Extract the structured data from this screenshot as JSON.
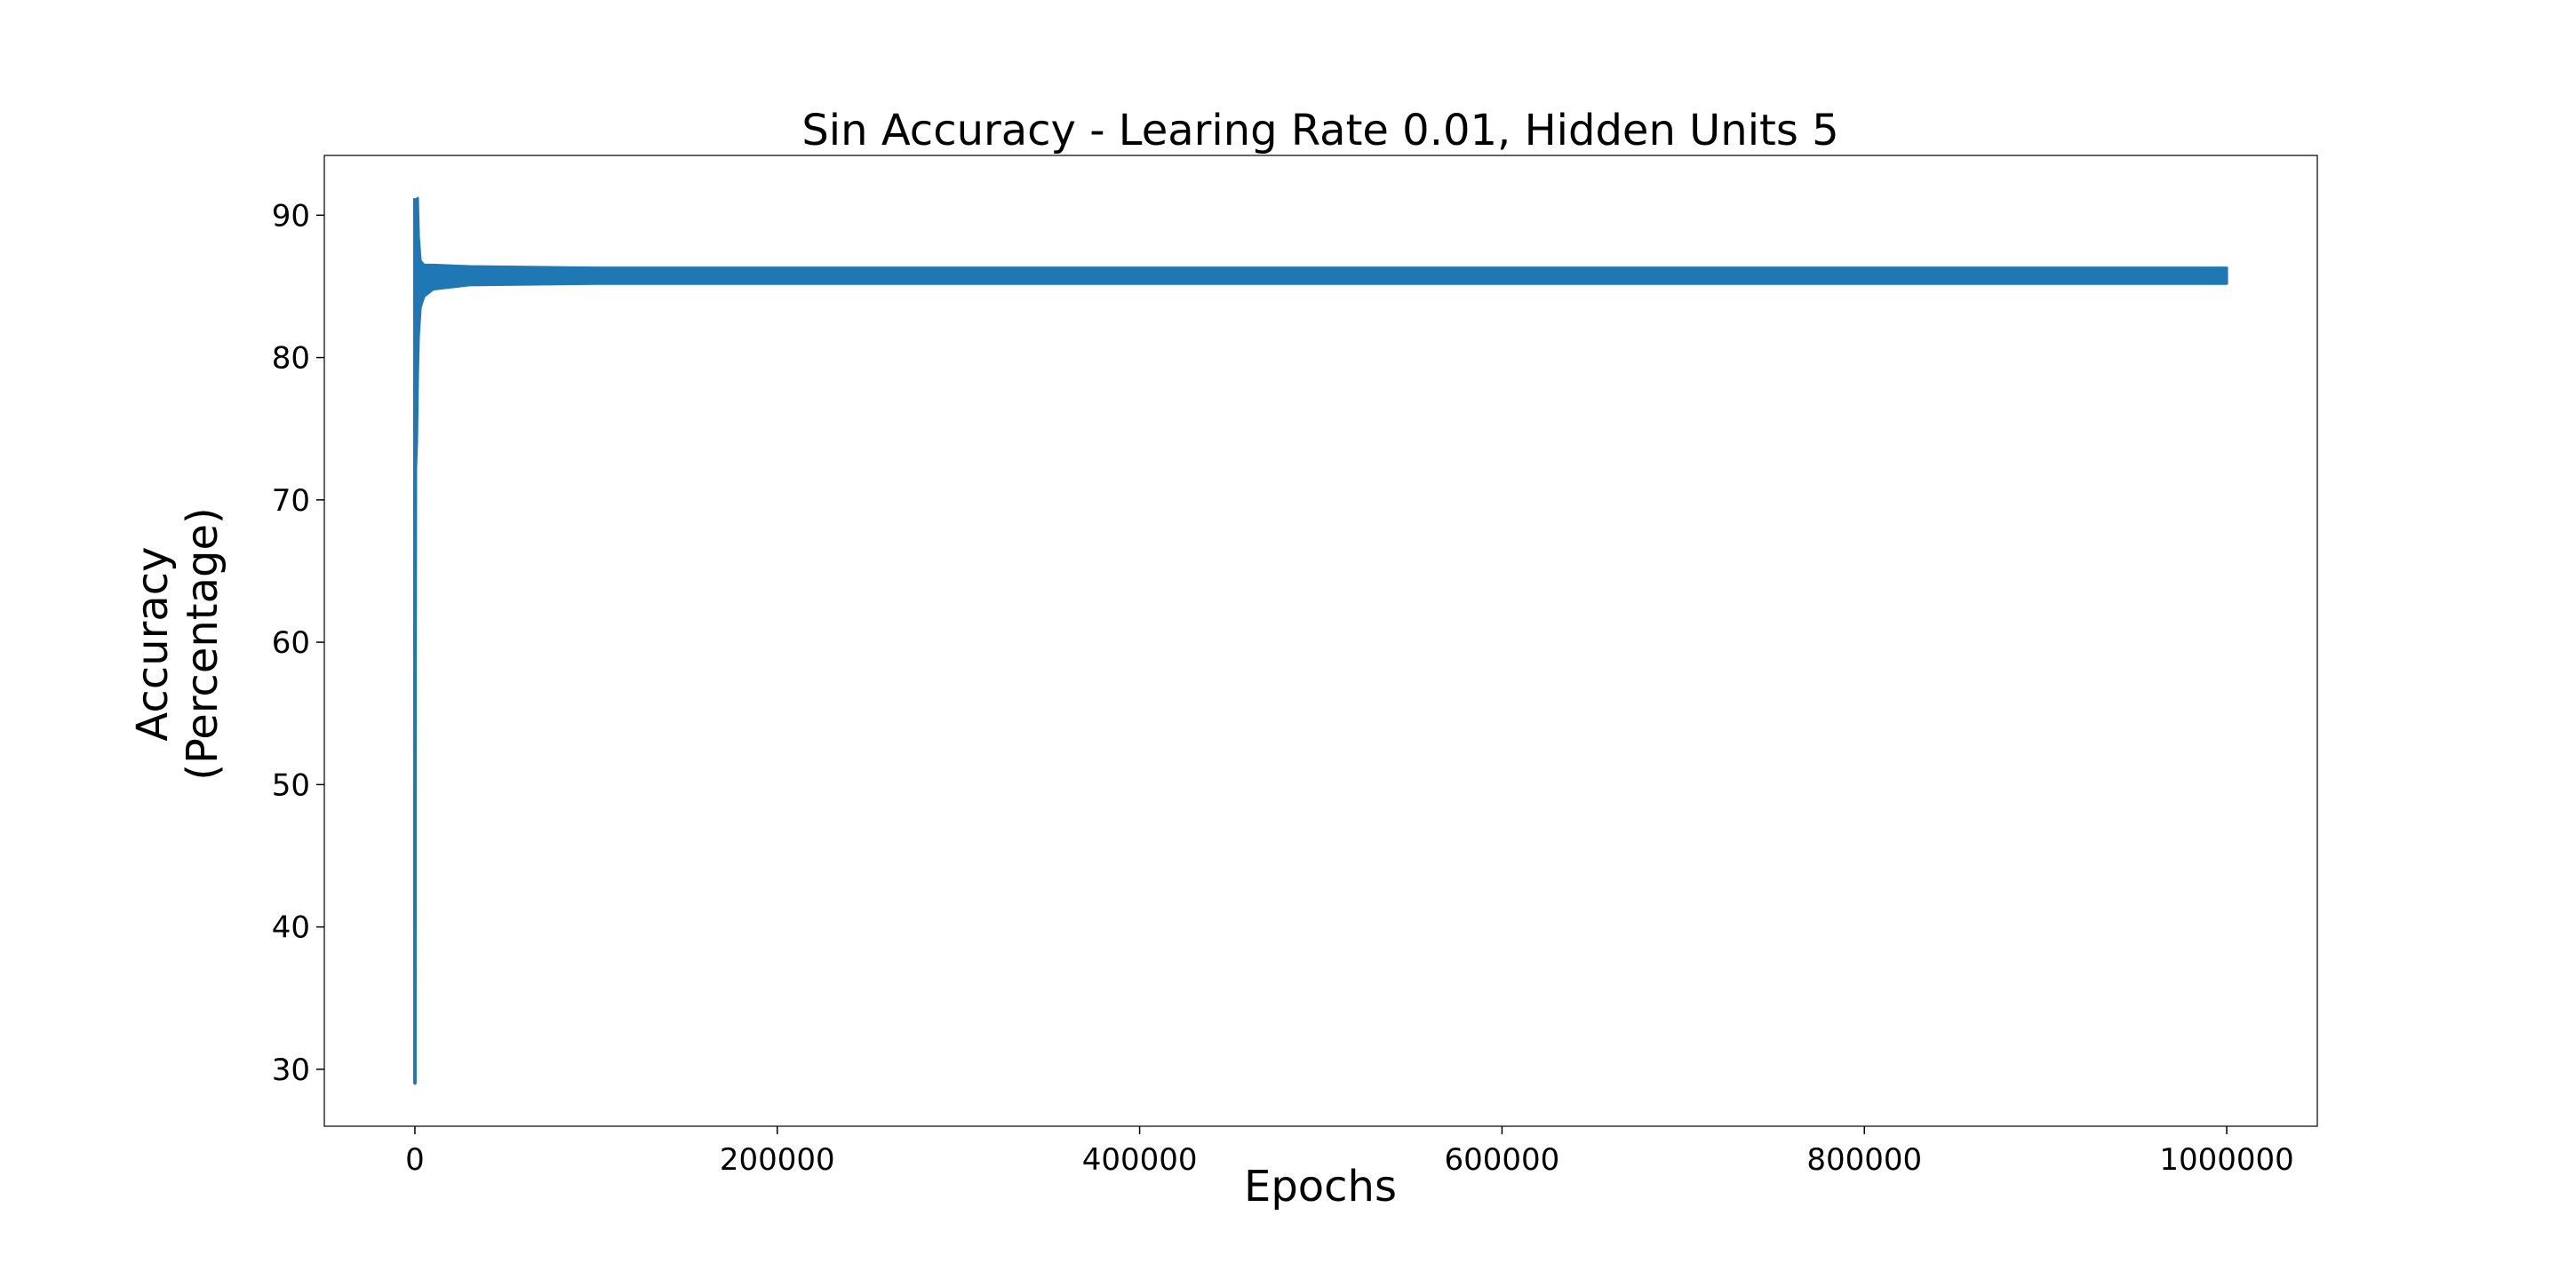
{
  "chart_data": {
    "type": "line",
    "title": "Sin Accuracy - Learing Rate 0.01, Hidden Units 5",
    "xlabel": "Epochs",
    "ylabel": [
      "Accuracy",
      "(Percentage)"
    ],
    "xlim": [
      -50000,
      1050000
    ],
    "ylim": [
      26,
      94.2
    ],
    "xticks": [
      0,
      200000,
      400000,
      600000,
      800000,
      1000000
    ],
    "xtick_labels": [
      "0",
      "200000",
      "400000",
      "600000",
      "800000",
      "1000000"
    ],
    "yticks": [
      30,
      40,
      50,
      60,
      70,
      80,
      90
    ],
    "ytick_labels": [
      "30",
      "40",
      "50",
      "60",
      "70",
      "80",
      "90"
    ],
    "grid": false,
    "legend": null,
    "color": "#1f77b4",
    "series": [
      {
        "description_upper_envelope": true,
        "x": [
          0,
          500,
          1000,
          1500,
          2000,
          3000,
          5000,
          10000,
          30000,
          100000,
          1000000
        ],
        "y": [
          30,
          86,
          90.5,
          91.2,
          88.5,
          86.8,
          86.5,
          86.5,
          86.4,
          86.3,
          86.3
        ]
      },
      {
        "description_lower_envelope": true,
        "x": [
          0,
          500,
          1000,
          1500,
          2000,
          3000,
          5000,
          10000,
          30000,
          100000,
          1000000
        ],
        "y": [
          29,
          72.3,
          74,
          78.7,
          81.5,
          83.5,
          84.3,
          84.8,
          85.1,
          85.2,
          85.2
        ]
      }
    ]
  }
}
